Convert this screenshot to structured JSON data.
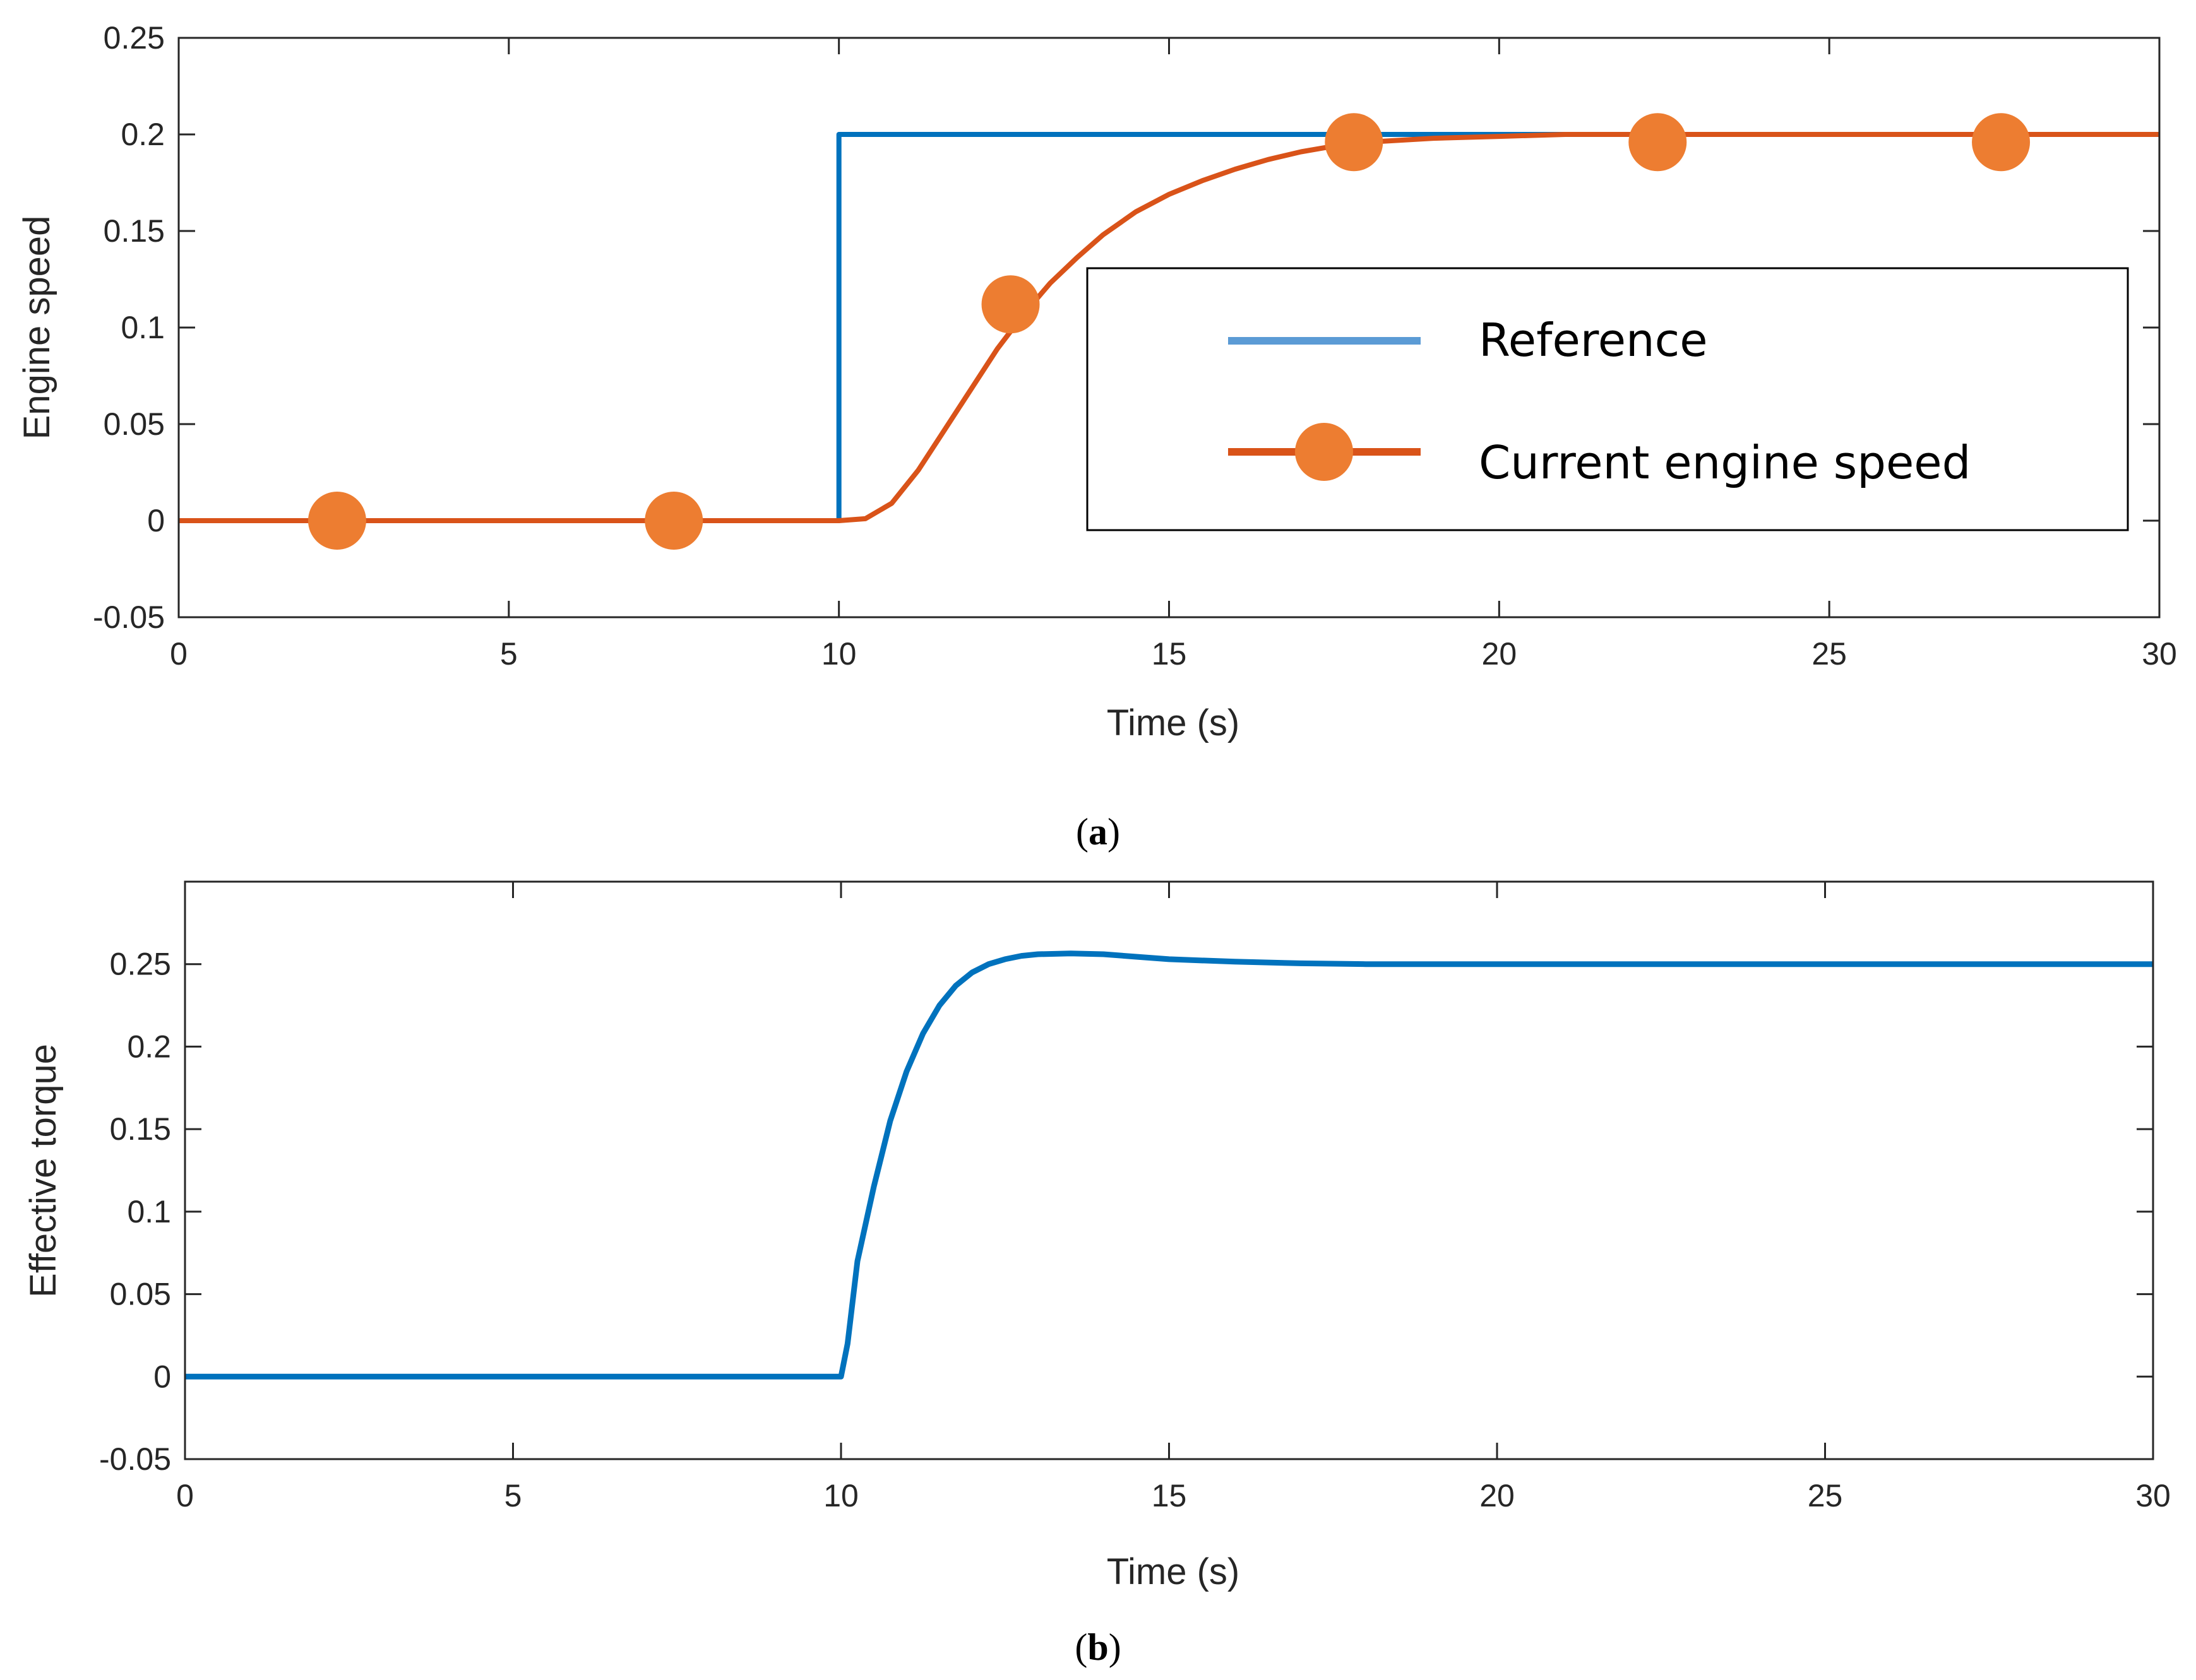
{
  "colors": {
    "reference": "#0072BD",
    "current": "#D95319",
    "marker": "#ED7D31",
    "axis": "#262626"
  },
  "chart_data": [
    {
      "type": "line",
      "caption": "(a)",
      "caption_letter": "a",
      "xlabel": "Time (s)",
      "ylabel": "Engine speed",
      "xlim": [
        0,
        30
      ],
      "ylim": [
        -0.05,
        0.25
      ],
      "xticks": [
        "0",
        "5",
        "10",
        "15",
        "20",
        "25",
        "30"
      ],
      "yticks": [
        "-0.05",
        "0",
        "0.05",
        "0.1",
        "0.15",
        "0.2",
        "0.25"
      ],
      "legend_position": "center-right",
      "series": [
        {
          "name": "Reference",
          "x": [
            0,
            10,
            10,
            30
          ],
          "y": [
            0,
            0,
            0.2,
            0.2
          ]
        },
        {
          "name": "Current engine speed",
          "x": [
            0,
            10,
            10.4,
            10.8,
            11.2,
            11.6,
            12,
            12.4,
            12.8,
            13.2,
            13.6,
            14,
            14.5,
            15,
            15.5,
            16,
            16.5,
            17,
            17.5,
            18,
            19,
            20,
            21,
            22,
            24,
            26,
            28,
            30
          ],
          "y": [
            0,
            0,
            0.001,
            0.009,
            0.026,
            0.047,
            0.068,
            0.089,
            0.107,
            0.123,
            0.136,
            0.148,
            0.16,
            0.169,
            0.176,
            0.182,
            0.187,
            0.191,
            0.194,
            0.196,
            0.198,
            0.199,
            0.2,
            0.2,
            0.2,
            0.2,
            0.2,
            0.2
          ],
          "markers_x": [
            2.4,
            7.5,
            12.6,
            17.8,
            22.4,
            27.6
          ],
          "markers_y": [
            0,
            0,
            0.112,
            0.196,
            0.196,
            0.196
          ]
        }
      ]
    },
    {
      "type": "line",
      "caption": "(b)",
      "caption_letter": "b",
      "xlabel": "Time (s)",
      "ylabel": "Effective torque",
      "xlim": [
        0,
        30
      ],
      "ylim": [
        -0.05,
        0.3
      ],
      "xticks": [
        "0",
        "5",
        "10",
        "15",
        "20",
        "25",
        "30"
      ],
      "yticks": [
        "-0.05",
        "0",
        "0.05",
        "0.1",
        "0.15",
        "0.2",
        "0.25"
      ],
      "series": [
        {
          "x": [
            0,
            10,
            10.1,
            10.25,
            10.5,
            10.75,
            11,
            11.25,
            11.5,
            11.75,
            12,
            12.25,
            12.5,
            12.75,
            13,
            13.5,
            14,
            14.5,
            15,
            16,
            17,
            18,
            20,
            22,
            25,
            30
          ],
          "y": [
            0,
            0,
            0.02,
            0.07,
            0.115,
            0.155,
            0.185,
            0.208,
            0.225,
            0.237,
            0.245,
            0.25,
            0.253,
            0.255,
            0.256,
            0.2565,
            0.256,
            0.2545,
            0.253,
            0.2515,
            0.2505,
            0.25,
            0.25,
            0.25,
            0.25,
            0.25
          ]
        }
      ]
    }
  ]
}
